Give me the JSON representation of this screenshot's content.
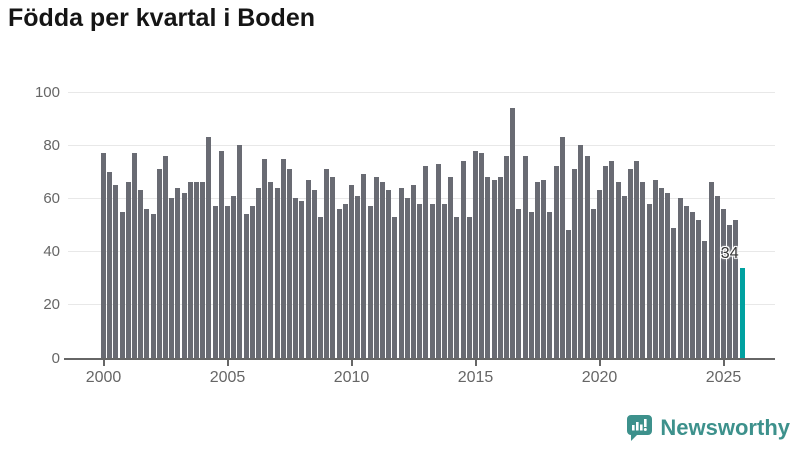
{
  "title": "Födda per kvartal i Boden",
  "chart_data": {
    "type": "bar",
    "title": "Födda per kvartal i Boden",
    "x_first_period": "2000 Q1",
    "x_last_period": "2025 Q4",
    "values": [
      77,
      70,
      65,
      55,
      66,
      77,
      63,
      56,
      54,
      71,
      76,
      60,
      64,
      62,
      66,
      66,
      66,
      83,
      57,
      78,
      57,
      61,
      80,
      54,
      57,
      64,
      75,
      66,
      64,
      75,
      71,
      60,
      59,
      67,
      63,
      53,
      71,
      68,
      56,
      58,
      65,
      61,
      69,
      57,
      68,
      66,
      63,
      53,
      64,
      60,
      65,
      58,
      72,
      58,
      73,
      58,
      68,
      53,
      74,
      53,
      78,
      77,
      68,
      67,
      68,
      76,
      94,
      56,
      76,
      55,
      66,
      67,
      55,
      72,
      83,
      48,
      71,
      80,
      76,
      56,
      63,
      72,
      74,
      66,
      61,
      71,
      74,
      66,
      58,
      67,
      64,
      62,
      49,
      60,
      57,
      55,
      52,
      44,
      66,
      61,
      56,
      50,
      52,
      34
    ],
    "highlight_index": 103,
    "highlight_value_label": "34",
    "ylim": [
      0,
      100
    ],
    "yticks": [
      0,
      20,
      40,
      60,
      80,
      100
    ],
    "xticks": [
      2000,
      2005,
      2010,
      2015,
      2020,
      2025
    ],
    "grid": true,
    "legend": false,
    "bar_color": "#696b73",
    "highlight_color": "#00a1a0",
    "axis_color": "#666666",
    "gridline_color": "#e8e8e8",
    "label_color": "#666666"
  },
  "branding": {
    "logo_text": "Newsworthy",
    "logo_color": "#3d918c"
  }
}
